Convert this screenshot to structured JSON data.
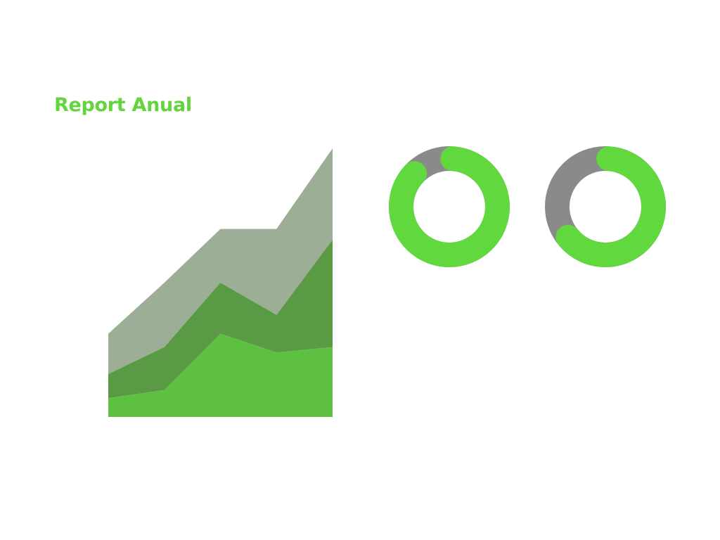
{
  "header": {
    "title": "Report Anual"
  },
  "colors": {
    "title": "#62d53d",
    "accent_green": "#62d83f",
    "track_gray": "#8a8a8a",
    "series_back": "#9caf96",
    "series_middle": "#5a9a44",
    "series_front": "#5dc040"
  },
  "chart_data": [
    {
      "type": "area",
      "stacked": true,
      "title": "",
      "xlabel": "",
      "ylabel": "",
      "axes_visible": false,
      "grid": false,
      "legend": "none",
      "x": [
        1,
        2,
        3,
        4,
        5
      ],
      "ylim": [
        0,
        100
      ],
      "series": [
        {
          "color": "#5dc040",
          "values": [
            7,
            10,
            31,
            24,
            26
          ]
        },
        {
          "color": "#5a9a44",
          "values": [
            9,
            16,
            19,
            14,
            40
          ]
        },
        {
          "color": "#9caf96",
          "values": [
            15,
            24,
            20,
            32,
            34
          ]
        }
      ]
    },
    {
      "type": "pie",
      "style": "donut",
      "title": "",
      "legend": "none",
      "slices": [
        {
          "value": 86,
          "color": "#62d83f"
        },
        {
          "value": 14,
          "color": "#8a8a8a"
        }
      ]
    },
    {
      "type": "pie",
      "style": "donut",
      "title": "",
      "legend": "none",
      "slices": [
        {
          "value": 63,
          "color": "#62d83f"
        },
        {
          "value": 37,
          "color": "#8a8a8a"
        }
      ]
    }
  ]
}
